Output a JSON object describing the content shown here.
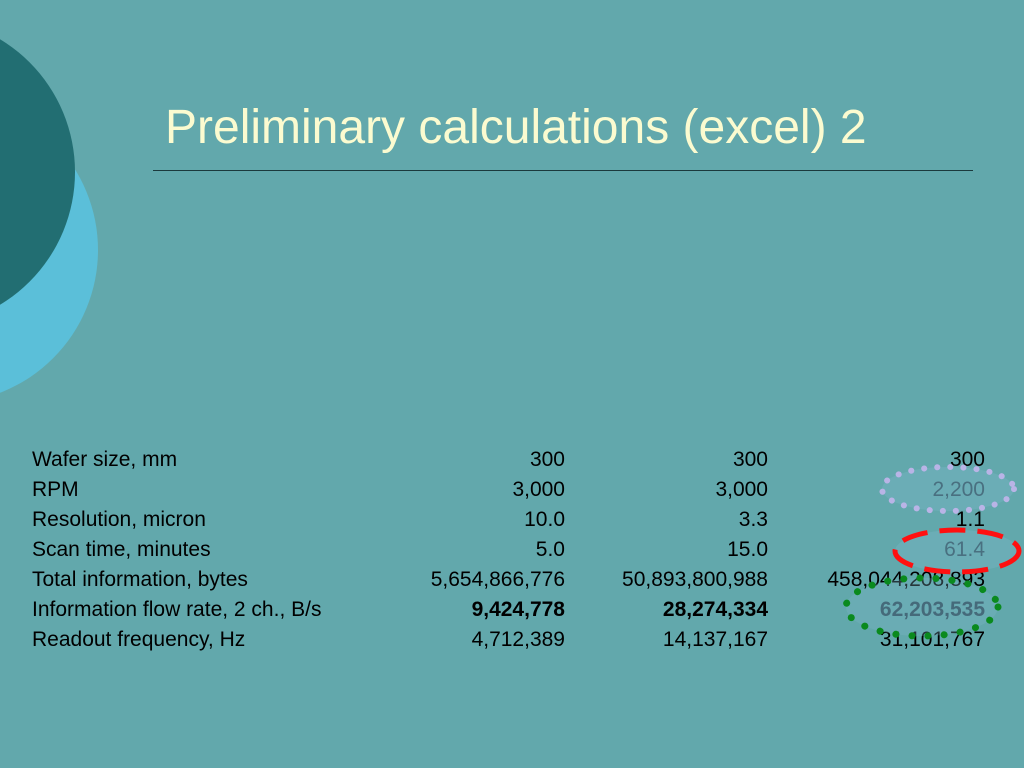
{
  "slide": {
    "title": "Preliminary calculations (excel) 2"
  },
  "table": {
    "rows": [
      {
        "label": "Wafer size, mm",
        "values": [
          "300",
          "300",
          "300"
        ]
      },
      {
        "label": "RPM",
        "values": [
          "3,000",
          "3,000",
          "2,200"
        ]
      },
      {
        "label": "Resolution, micron",
        "values": [
          "10.0",
          "3.3",
          "1.1"
        ]
      },
      {
        "label": "Scan time, minutes",
        "values": [
          "5.0",
          "15.0",
          "61.4"
        ]
      },
      {
        "label": "Total information, bytes",
        "values": [
          "5,654,866,776",
          "50,893,800,988",
          "458,044,208,893"
        ]
      },
      {
        "label": "Information flow rate, 2 ch., B/s",
        "values": [
          "9,424,778",
          "28,274,334",
          "62,203,535"
        ]
      },
      {
        "label": "Readout frequency, Hz",
        "values": [
          "4,712,389",
          "14,137,167",
          "31,101,767"
        ]
      }
    ]
  },
  "colors": {
    "background": "#62a8ac",
    "title": "#fbfbd0",
    "dark_circle": "#226e72",
    "light_circle": "#5bbfd9",
    "highlight_lilac": "#b9b4e6",
    "highlight_red": "#ff1010",
    "highlight_green": "#0a8a1e"
  }
}
